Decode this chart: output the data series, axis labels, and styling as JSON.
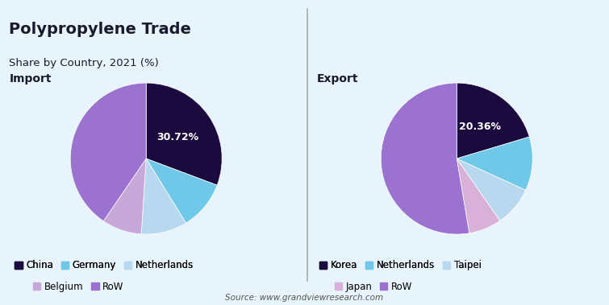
{
  "title": "Polypropylene Trade",
  "subtitle": "Share by Country, 2021 (%)",
  "import_label": "Import",
  "export_label": "Export",
  "import_data": {
    "labels": [
      "China",
      "Germany",
      "Netherlands",
      "Belgium",
      "RoW"
    ],
    "values": [
      30.72,
      10.5,
      9.8,
      8.5,
      40.48
    ],
    "colors": [
      "#1a0a3d",
      "#6fc8e8",
      "#b8d8f0",
      "#c8a8d8",
      "#9b72cf"
    ],
    "pct_label": "30.72%",
    "pct_label_idx": 0
  },
  "export_data": {
    "labels": [
      "Korea",
      "Netherlands",
      "Taipei",
      "Japan",
      "RoW"
    ],
    "values": [
      20.36,
      11.5,
      8.5,
      7.0,
      52.64
    ],
    "colors": [
      "#1a0a3d",
      "#6fc8e8",
      "#b8d8f0",
      "#d8b0d8",
      "#9b72cf"
    ],
    "pct_label": "20.36%",
    "pct_label_idx": 0
  },
  "background_color": "#e8f4fc",
  "source_text": "Source: www.grandviewresearch.com",
  "divider_color": "#aaaaaa",
  "title_color": "#1a1a2e",
  "label_color": "#333355"
}
